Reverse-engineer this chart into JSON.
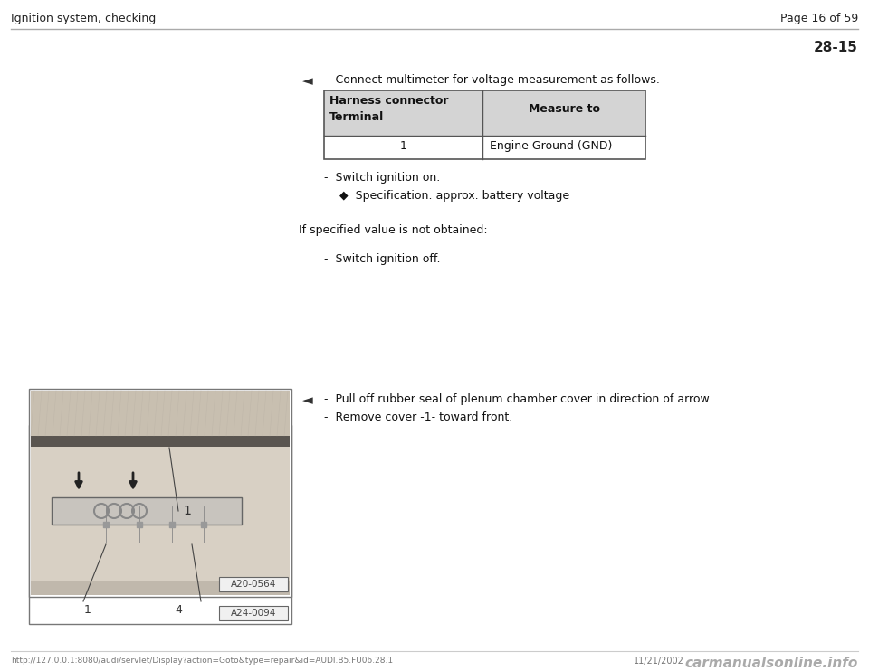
{
  "bg_color": "#ffffff",
  "header_left": "Ignition system, checking",
  "header_right": "Page 16 of 59",
  "page_number": "28-15",
  "section1": {
    "arrow_symbol": "◄",
    "bullet1": "-  Connect multimeter for voltage measurement as follows.",
    "table_header_col1_line1": "Harness connector",
    "table_header_col1_line2": "Terminal",
    "table_header_col2": "Measure to",
    "table_row_col1": "1",
    "table_row_col2": "Engine Ground (GND)",
    "bullet2": "-  Switch ignition on.",
    "bullet3": "◆  Specification: approx. battery voltage",
    "if_text": "If specified value is not obtained:",
    "bullet4": "-  Switch ignition off."
  },
  "section2": {
    "arrow_symbol": "◄",
    "bullet1": "-  Pull off rubber seal of plenum chamber cover in direction of arrow.",
    "bullet2": "-  Remove cover -1- toward front."
  },
  "footer_left": "http://127.0.0.1:8080/audi/servlet/Display?action=Goto&type=repair&id=AUDI.B5.FU06.28.1",
  "footer_right_date": "11/21/2002",
  "footer_right_logo": "carmanualsonline.info",
  "img1_label": "A24-0094",
  "img2_label": "A20-0564"
}
